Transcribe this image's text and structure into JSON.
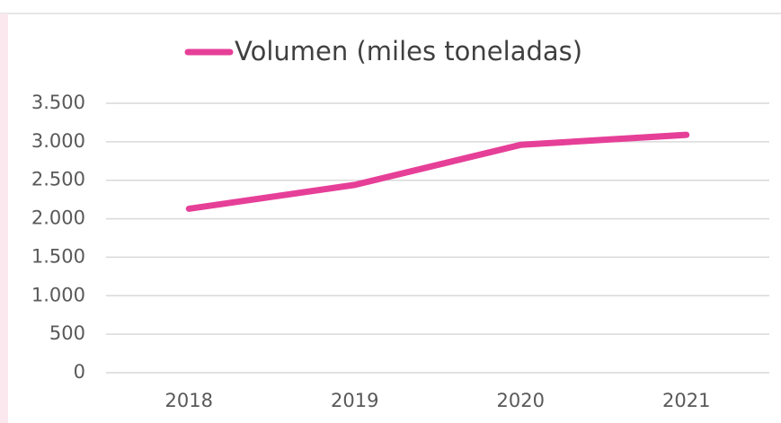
{
  "chart_data": {
    "type": "line",
    "categories": [
      "2018",
      "2019",
      "2020",
      "2021"
    ],
    "series": [
      {
        "name": "Volumen (miles toneladas)",
        "color": "#e63f98",
        "values": [
          2130,
          2440,
          2960,
          3090
        ]
      }
    ],
    "ylim": [
      0,
      3500
    ],
    "yticks": [
      0,
      {
        "value": 500,
        "label": "500"
      },
      {
        "value": 1000,
        "label": "1.000"
      },
      {
        "value": 1500,
        "label": "1.500"
      },
      {
        "value": 2000,
        "label": "2.000"
      },
      {
        "value": 2500,
        "label": "2.500"
      },
      {
        "value": 3000,
        "label": "3.000"
      },
      {
        "value": 3500,
        "label": "3.500"
      }
    ],
    "grid": true,
    "legend": "top"
  }
}
